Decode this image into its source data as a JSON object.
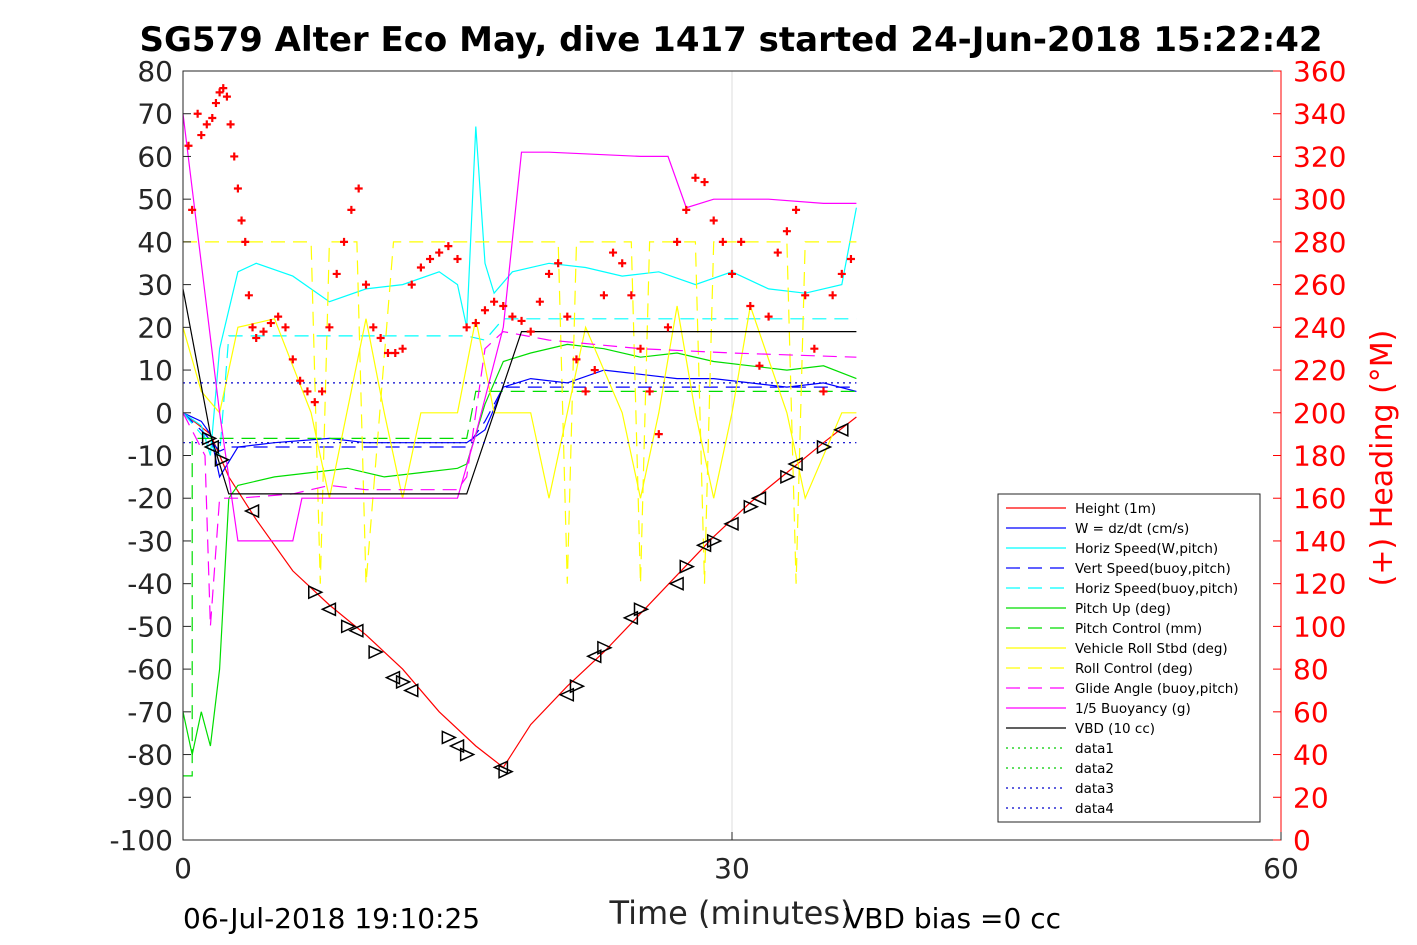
{
  "chart_data": {
    "type": "line",
    "title": "SG579 Alter Eco May, dive 1417 started 24-Jun-2018 15:22:42",
    "xlabel": "Time (minutes)",
    "ylabel": "",
    "y2label": "(+) Heading (°M)",
    "xlim": [
      0,
      60
    ],
    "ylim": [
      -100,
      80
    ],
    "y2lim": [
      0,
      360
    ],
    "xticks": [
      "0",
      "30",
      "60"
    ],
    "yticks": [
      "80",
      "70",
      "60",
      "50",
      "40",
      "30",
      "20",
      "10",
      "0",
      "-10",
      "-20",
      "-30",
      "-40",
      "-50",
      "-60",
      "-70",
      "-80",
      "-90",
      "-100"
    ],
    "y2ticks": [
      "360",
      "340",
      "320",
      "300",
      "280",
      "260",
      "240",
      "220",
      "200",
      "180",
      "160",
      "140",
      "120",
      "100",
      "80",
      "60",
      "40",
      "20",
      "0"
    ],
    "grid": "x-only",
    "legend_position": "lower-right",
    "footer_left": "06-Jul-2018 19:10:25",
    "footer_right": "VBD bias =0 cc",
    "colors": {
      "heading": "#ff0000",
      "axis": "#262626"
    },
    "series": [
      {
        "name": "Height (1m)",
        "color": "#ff0000",
        "style": "solid",
        "x": [
          0,
          1.5,
          2.5,
          4,
          6,
          8,
          10,
          12,
          14,
          16,
          17.5,
          19,
          21,
          23,
          25,
          27,
          29,
          31,
          33,
          35,
          36.8
        ],
        "y": [
          0,
          -5,
          -15,
          -25,
          -37,
          -45,
          -52,
          -60,
          -70,
          -78,
          -83,
          -73,
          -64,
          -56,
          -47,
          -38,
          -29,
          -21,
          -14,
          -7,
          -1
        ]
      },
      {
        "name": "W = dz/dt (cm/s)",
        "color": "#0000ff",
        "style": "solid",
        "x": [
          0,
          1,
          1.5,
          2,
          3,
          5,
          8,
          10,
          12,
          14,
          15.5,
          16.5,
          17.5,
          19,
          21,
          23,
          25,
          27,
          29,
          31,
          33,
          35,
          36.8
        ],
        "y": [
          0,
          -2,
          -5,
          -15,
          -8,
          -7,
          -6,
          -7,
          -7,
          -7,
          -7,
          -4,
          6,
          8,
          7,
          10,
          9,
          8,
          8,
          7,
          6,
          7,
          5
        ]
      },
      {
        "name": "Horiz Speed(W,pitch)",
        "color": "#00ffff",
        "style": "solid",
        "x": [
          0,
          1,
          1.5,
          2,
          3,
          4,
          6,
          8,
          10,
          12,
          14,
          15,
          15.5,
          16,
          16.5,
          17,
          18,
          20,
          22,
          24,
          26,
          28,
          30,
          32,
          34,
          36,
          36.8
        ],
        "y": [
          0,
          -3,
          -10,
          15,
          33,
          35,
          32,
          26,
          29,
          30,
          33,
          30,
          20,
          67,
          35,
          28,
          33,
          35,
          34,
          32,
          33,
          30,
          33,
          29,
          28,
          30,
          48
        ]
      },
      {
        "name": "Vert Speed(buoy,pitch)",
        "color": "#0000ff",
        "style": "dashed",
        "x": [
          0,
          1.2,
          2,
          2.5,
          15.5,
          16.5,
          17.5,
          36.8
        ],
        "y": [
          0,
          -5,
          -9,
          -8,
          -8,
          -2,
          6,
          6
        ]
      },
      {
        "name": "Horiz Speed(buoy,pitch)",
        "color": "#00ffff",
        "style": "dashed",
        "x": [
          0,
          2,
          2.5,
          15.5,
          16.5,
          17.5,
          36.8
        ],
        "y": [
          0,
          -10,
          18,
          18,
          17,
          22,
          22
        ]
      },
      {
        "name": "Pitch Up (deg)",
        "color": "#00dd00",
        "style": "solid",
        "x": [
          0,
          0.5,
          1,
          1.5,
          2,
          2.5,
          3,
          5,
          7,
          9,
          11,
          13,
          15,
          15.5,
          16.5,
          17.5,
          19,
          21,
          23,
          25,
          27,
          29,
          31,
          33,
          35,
          36.8
        ],
        "y": [
          -70,
          -80,
          -70,
          -78,
          -60,
          -20,
          -17,
          -15,
          -14,
          -13,
          -15,
          -14,
          -13,
          -12,
          2,
          12,
          14,
          16,
          15,
          13,
          14,
          12,
          11,
          10,
          11,
          8
        ]
      },
      {
        "name": "Pitch Control (mm)",
        "color": "#00dd00",
        "style": "dashed",
        "x": [
          0,
          0.5,
          0.5,
          1.2,
          1.5,
          2,
          15.5,
          16,
          17.5,
          36.8
        ],
        "y": [
          -85,
          -85,
          -6,
          -6,
          -6,
          -6,
          -6,
          5,
          5,
          5
        ]
      },
      {
        "name": "Vehicle Roll Stbd (deg)",
        "color": "#ffff00",
        "style": "solid",
        "x": [
          0,
          1,
          2,
          3,
          5,
          7,
          8,
          10,
          11,
          12,
          13,
          15,
          16,
          17,
          19,
          20,
          21,
          22,
          24,
          25,
          26,
          27,
          28,
          29,
          30,
          31,
          33,
          34,
          36,
          36.8
        ],
        "y": [
          20,
          5,
          0,
          20,
          22,
          0,
          -20,
          22,
          0,
          -20,
          0,
          0,
          22,
          0,
          0,
          -20,
          0,
          20,
          0,
          -20,
          0,
          25,
          0,
          -20,
          0,
          25,
          0,
          -20,
          0,
          0
        ]
      },
      {
        "name": "Roll Control (deg)",
        "color": "#ffff00",
        "style": "dashed",
        "x": [
          0,
          2,
          3,
          7,
          7.5,
          8,
          9.5,
          10,
          11.5,
          12,
          15.5,
          16,
          16.5,
          20.5,
          21,
          21.5,
          24.5,
          25,
          25.5,
          28,
          28.5,
          29,
          33,
          33.5,
          34,
          36.8
        ],
        "y": [
          40,
          40,
          40,
          40,
          -40,
          40,
          40,
          -40,
          40,
          40,
          40,
          40,
          40,
          40,
          -40,
          40,
          40,
          -40,
          40,
          40,
          -40,
          40,
          40,
          -40,
          40,
          40
        ]
      },
      {
        "name": "Glide Angle (buoy,pitch)",
        "color": "#ff00ff",
        "style": "dashed",
        "x": [
          0,
          1.2,
          1.5,
          2,
          2.5,
          3,
          6,
          8,
          10,
          12,
          15,
          15.5,
          16.5,
          17.5,
          20,
          25,
          30,
          36.8
        ],
        "y": [
          0,
          -10,
          -50,
          -20,
          -20,
          -20,
          -19,
          -17,
          -18,
          -18,
          -18,
          -15,
          15,
          19,
          17,
          15,
          14,
          13
        ]
      },
      {
        "name": "1/5 Buoyancy (g)",
        "color": "#ff00ff",
        "style": "solid",
        "x": [
          0,
          1,
          2,
          3,
          6,
          6.5,
          15,
          16,
          17.5,
          18.5,
          20,
          25,
          26.5,
          27.5,
          29,
          32,
          35,
          36.8
        ],
        "y": [
          70,
          35,
          0,
          -30,
          -30,
          -20,
          -20,
          -5,
          20,
          61,
          61,
          60,
          60,
          48,
          50,
          50,
          49,
          49
        ]
      },
      {
        "name": "VBD (10 cc)",
        "color": "#000000",
        "style": "solid",
        "x": [
          0,
          1.5,
          2.5,
          15,
          15.5,
          18.5,
          20,
          36.8
        ],
        "y": [
          29,
          -5,
          -19,
          -19,
          -19,
          19,
          19,
          19
        ]
      },
      {
        "name": "data1",
        "color": "#00cc00",
        "style": "dotted",
        "x": [],
        "y": []
      },
      {
        "name": "data2",
        "color": "#00cc00",
        "style": "dotted",
        "x": [],
        "y": []
      },
      {
        "name": "data3",
        "color": "#0000cc",
        "style": "dotted",
        "x": [
          0,
          36.8
        ],
        "y": [
          7,
          7
        ]
      },
      {
        "name": "data4",
        "color": "#0000cc",
        "style": "dotted",
        "x": [
          0,
          36.8
        ],
        "y": [
          -7,
          -7
        ]
      }
    ],
    "heading_points": {
      "axis": "right",
      "marker": "+",
      "color": "#ff0000",
      "x": [
        0.3,
        0.5,
        0.8,
        1.0,
        1.3,
        1.6,
        1.8,
        2.0,
        2.2,
        2.4,
        2.6,
        2.8,
        3.0,
        3.2,
        3.4,
        3.6,
        3.8,
        4.0,
        4.4,
        4.8,
        5.2,
        5.6,
        6.0,
        6.4,
        6.8,
        7.2,
        7.6,
        8.0,
        8.4,
        8.8,
        9.2,
        9.6,
        10.0,
        10.4,
        10.8,
        11.2,
        11.6,
        12.0,
        12.5,
        13.0,
        13.5,
        14.0,
        14.5,
        15.0,
        15.5,
        16.0,
        16.5,
        17.0,
        17.5,
        18.0,
        18.5,
        19.0,
        19.5,
        20.0,
        20.5,
        21.0,
        21.5,
        22.0,
        22.5,
        23.0,
        23.5,
        24.0,
        24.5,
        25.0,
        25.5,
        26.0,
        26.5,
        27.0,
        27.5,
        28.0,
        28.5,
        29.0,
        29.5,
        30.0,
        30.5,
        31.0,
        31.5,
        32.0,
        32.5,
        33.0,
        33.5,
        34.0,
        34.5,
        35.0,
        35.5,
        36.0,
        36.5
      ],
      "y": [
        325,
        295,
        340,
        330,
        335,
        338,
        345,
        350,
        352,
        348,
        335,
        320,
        305,
        290,
        280,
        255,
        240,
        235,
        238,
        242,
        245,
        240,
        225,
        215,
        210,
        205,
        210,
        240,
        265,
        280,
        295,
        305,
        260,
        240,
        235,
        228,
        228,
        230,
        260,
        268,
        272,
        275,
        278,
        272,
        240,
        242,
        248,
        252,
        250,
        245,
        243,
        238,
        252,
        265,
        270,
        245,
        225,
        210,
        220,
        255,
        275,
        270,
        255,
        230,
        210,
        190,
        240,
        280,
        295,
        310,
        308,
        290,
        280,
        265,
        280,
        250,
        222,
        245,
        275,
        285,
        295,
        255,
        230,
        210,
        255,
        265,
        272
      ]
    },
    "depth_markers": {
      "marker": "triangle",
      "color": "#000000",
      "x": [
        1.4,
        1.6,
        2.1,
        3.8,
        7.2,
        8.0,
        9.0,
        9.5,
        10.5,
        11.5,
        12.0,
        12.5,
        14.5,
        15.0,
        15.5,
        17.4,
        17.6,
        21.0,
        21.5,
        22.5,
        23.0,
        24.5,
        25.0,
        27.0,
        27.5,
        28.5,
        29.0,
        30.0,
        31.0,
        31.5,
        33.0,
        33.5,
        35.0,
        36.0
      ],
      "y": [
        -6,
        -8,
        -11,
        -23,
        -42,
        -46,
        -50,
        -51,
        -56,
        -62,
        -63,
        -65,
        -76,
        -78,
        -80,
        -83,
        -84,
        -66,
        -64,
        -57,
        -55,
        -48,
        -46,
        -40,
        -36,
        -31,
        -30,
        -26,
        -22,
        -20,
        -15,
        -12,
        -8,
        -4
      ]
    }
  }
}
